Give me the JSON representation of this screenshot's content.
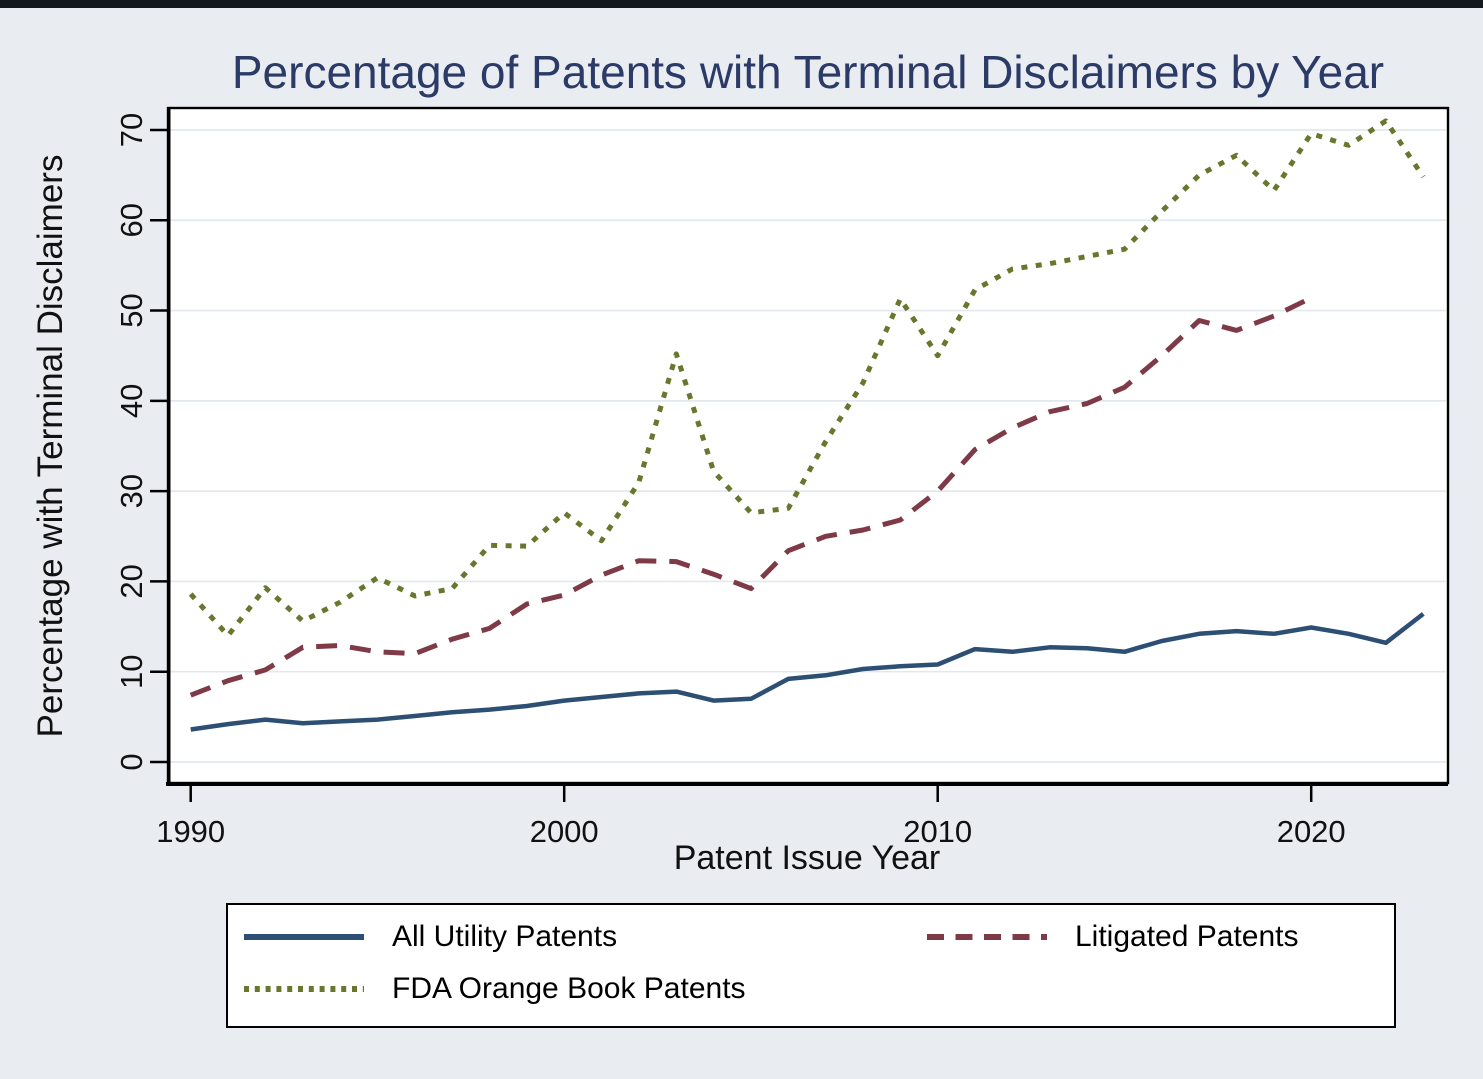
{
  "page": {
    "background": "#e9edf2",
    "topbar_color": "#141821"
  },
  "title": {
    "text": "Percentage of Patents with Terminal Disclaimers by Year",
    "color": "#2b3a66"
  },
  "axes": {
    "x": {
      "label": "Patent Issue Year",
      "ticks": [
        "1990",
        "2000",
        "2010",
        "2020"
      ]
    },
    "y": {
      "label": "Percentage with Terminal Disclaimers",
      "ticks": [
        "0",
        "10",
        "20",
        "30",
        "40",
        "50",
        "60",
        "70"
      ]
    }
  },
  "legend": {
    "items": [
      {
        "label": "All Utility Patents"
      },
      {
        "label": "Litigated Patents"
      },
      {
        "label": "FDA Orange Book Patents"
      }
    ]
  },
  "chart_data": {
    "type": "line",
    "title": "Percentage of Patents with Terminal Disclaimers by Year",
    "xlabel": "Patent Issue Year",
    "ylabel": "Percentage with Terminal Disclaimers",
    "xlim": [
      1990,
      2023
    ],
    "ylim": [
      0,
      71
    ],
    "grid": "horizontal",
    "legend_position": "bottom",
    "x_years": [
      1990,
      1991,
      1992,
      1993,
      1994,
      1995,
      1996,
      1997,
      1998,
      1999,
      2000,
      2001,
      2002,
      2003,
      2004,
      2005,
      2006,
      2007,
      2008,
      2009,
      2010,
      2011,
      2012,
      2013,
      2014,
      2015,
      2016,
      2017,
      2018,
      2019,
      2020,
      2021,
      2022,
      2023
    ],
    "series": [
      {
        "name": "All Utility Patents",
        "color": "#2d4f74",
        "dash": "solid",
        "values": [
          3.6,
          4.2,
          4.7,
          4.3,
          4.5,
          4.7,
          5.1,
          5.5,
          5.8,
          6.2,
          6.8,
          7.2,
          7.6,
          7.8,
          6.8,
          7.0,
          9.2,
          9.6,
          10.3,
          10.6,
          10.8,
          12.5,
          12.2,
          12.7,
          12.6,
          12.2,
          13.4,
          14.2,
          14.5,
          14.2,
          14.9,
          14.2,
          13.2,
          16.4
        ]
      },
      {
        "name": "Litigated Patents",
        "color": "#7e3a46",
        "dash": "dashed",
        "values": [
          7.4,
          9.0,
          10.2,
          12.7,
          12.9,
          12.2,
          12.0,
          13.6,
          14.8,
          17.5,
          18.5,
          20.7,
          22.3,
          22.2,
          20.8,
          19.2,
          23.4,
          25.0,
          25.7,
          26.8,
          30.0,
          34.6,
          37.0,
          38.8,
          39.7,
          41.5,
          45.0,
          48.9,
          47.8,
          49.4,
          51.4
        ]
      },
      {
        "name": "FDA Orange Book Patents",
        "color": "#68772e",
        "dash": "dotted",
        "values": [
          18.6,
          14.0,
          19.3,
          15.6,
          17.7,
          20.4,
          18.4,
          19.2,
          24.0,
          23.9,
          27.6,
          24.5,
          31.0,
          45.2,
          32.2,
          27.6,
          28.1,
          35.5,
          42.0,
          51.3,
          45.0,
          52.3,
          54.6,
          55.2,
          56.0,
          56.8,
          61.0,
          65.0,
          67.2,
          63.3,
          69.6,
          68.3,
          71.0,
          64.8
        ]
      }
    ]
  }
}
